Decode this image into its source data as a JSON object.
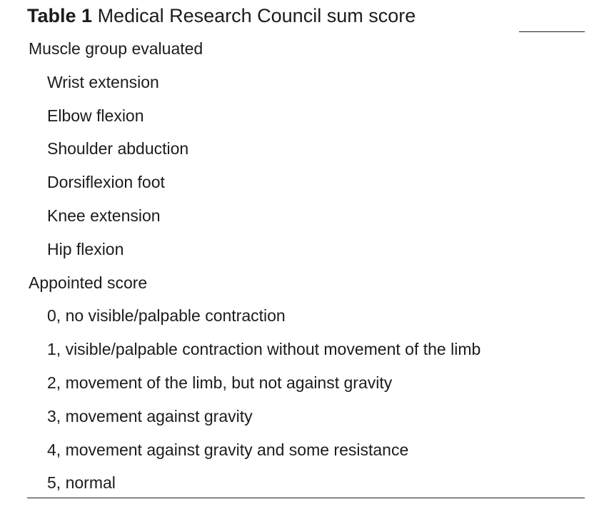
{
  "caption": {
    "label": "Table 1",
    "title": "Medical Research Council sum score"
  },
  "sections": [
    {
      "heading": "Muscle group evaluated",
      "items": [
        "Wrist extension",
        "Elbow flexion",
        "Shoulder abduction",
        "Dorsiflexion foot",
        "Knee extension",
        "Hip flexion"
      ]
    },
    {
      "heading": "Appointed score",
      "items": [
        "0, no visible/palpable contraction",
        "1, visible/palpable contraction without movement of the limb",
        "2, movement of the limb, but not against gravity",
        "3, movement against gravity",
        "4, movement against gravity and some resistance",
        "5, normal"
      ]
    }
  ]
}
